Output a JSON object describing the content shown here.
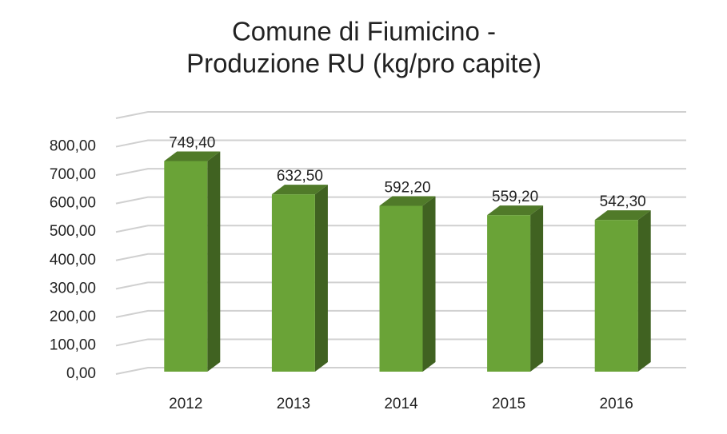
{
  "chart_data": {
    "type": "bar3d",
    "title": [
      "Comune di Fiumicino -",
      "Produzione RU (kg/pro capite)"
    ],
    "categories": [
      "2012",
      "2013",
      "2014",
      "2015",
      "2016"
    ],
    "values": [
      749.4,
      632.5,
      592.2,
      559.2,
      542.3
    ],
    "value_labels": [
      "749,40",
      "632,50",
      "592,20",
      "559,20",
      "542,30"
    ],
    "color": "#6aa337",
    "ylim": [
      0,
      900
    ],
    "yticks": [
      {
        "value": 0,
        "label": "0,00"
      },
      {
        "value": 100,
        "label": "100,00"
      },
      {
        "value": 200,
        "label": "200,00"
      },
      {
        "value": 300,
        "label": "300,00"
      },
      {
        "value": 400,
        "label": "400,00"
      },
      {
        "value": 500,
        "label": "500,00"
      },
      {
        "value": 600,
        "label": "600,00"
      },
      {
        "value": 700,
        "label": "700,00"
      },
      {
        "value": 800,
        "label": "800,00"
      }
    ],
    "grid": true
  }
}
